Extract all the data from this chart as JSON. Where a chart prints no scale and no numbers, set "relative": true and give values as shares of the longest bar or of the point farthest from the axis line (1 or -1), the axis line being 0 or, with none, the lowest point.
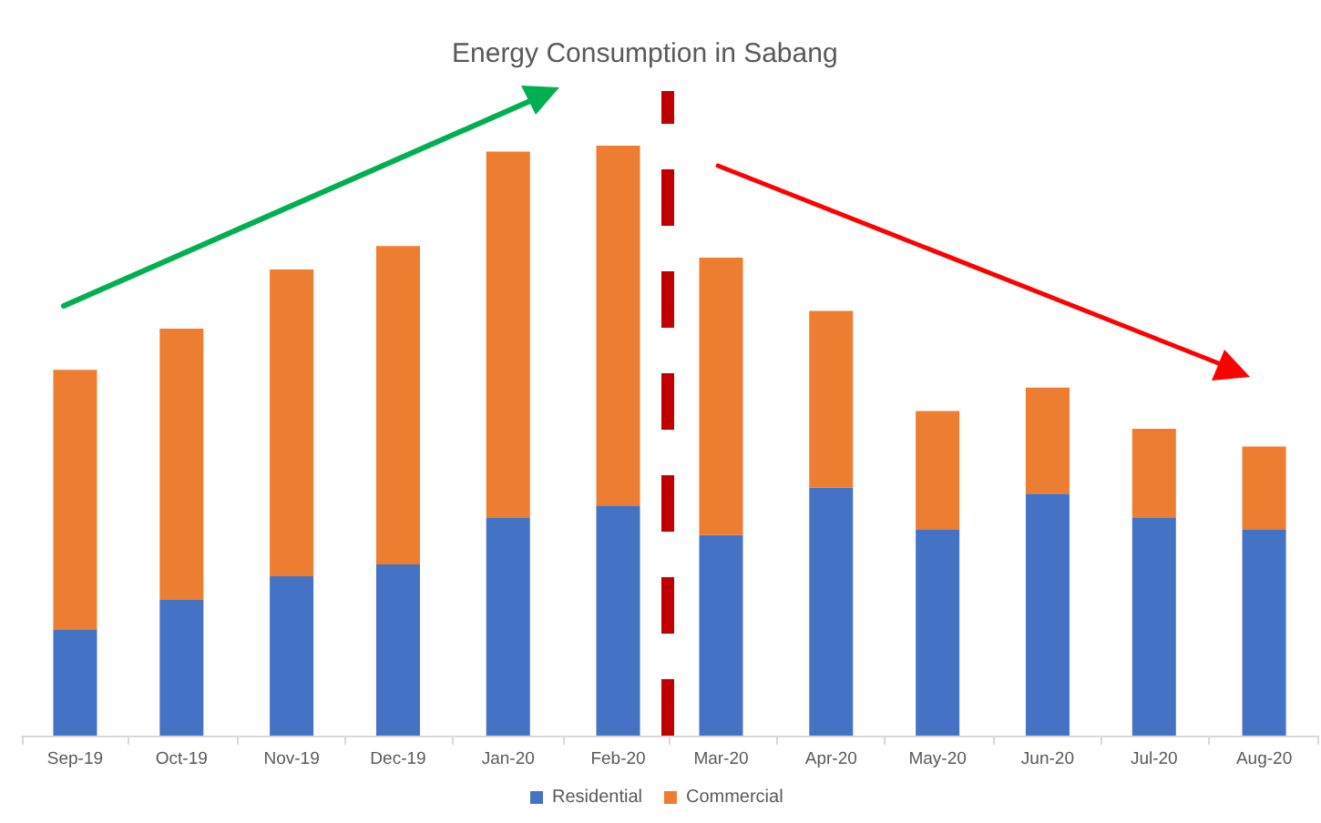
{
  "chart_data": {
    "type": "bar",
    "title": "Energy Consumption in Sabang",
    "relative": true,
    "stacked": true,
    "x": [
      "2019-09",
      "2019-10",
      "2019-11",
      "2019-12",
      "2020-01",
      "2020-02",
      "2020-03",
      "2020-04",
      "2020-05",
      "2020-06",
      "2020-07",
      "2020-08"
    ],
    "xlim": [
      "2019-08-17",
      "2020-08-16"
    ],
    "xticks": [
      {
        "value": "2019-09",
        "label": "Sep-19"
      },
      {
        "value": "2019-10",
        "label": "Oct-19"
      },
      {
        "value": "2019-11",
        "label": "Nov-19"
      },
      {
        "value": "2019-12",
        "label": "Dec-19"
      },
      {
        "value": "2020-01",
        "label": "Jan-20"
      },
      {
        "value": "2020-02",
        "label": "Feb-20"
      },
      {
        "value": "2020-03",
        "label": "Mar-20"
      },
      {
        "value": "2020-04",
        "label": "Apr-20"
      },
      {
        "value": "2020-05",
        "label": "May-20"
      },
      {
        "value": "2020-06",
        "label": "Jun-20"
      },
      {
        "value": "2020-07",
        "label": "Jul-20"
      },
      {
        "value": "2020-08",
        "label": "Aug-20"
      }
    ],
    "series": [
      {
        "name": "Residential",
        "color": "#4472c4",
        "values": [
          0.18,
          0.23,
          0.27,
          0.29,
          0.37,
          0.39,
          0.34,
          0.42,
          0.35,
          0.41,
          0.37,
          0.35
        ]
      },
      {
        "name": "Commercial",
        "color": "#ed7d31",
        "values": [
          0.44,
          0.46,
          0.52,
          0.54,
          0.62,
          0.61,
          0.47,
          0.3,
          0.2,
          0.18,
          0.15,
          0.14
        ]
      }
    ],
    "ref_lines": [
      {
        "axis": "x",
        "value": "2020-02-15",
        "color": "#c00000",
        "line_style": "dashed"
      }
    ],
    "legend": "bottom",
    "grid": false
  }
}
